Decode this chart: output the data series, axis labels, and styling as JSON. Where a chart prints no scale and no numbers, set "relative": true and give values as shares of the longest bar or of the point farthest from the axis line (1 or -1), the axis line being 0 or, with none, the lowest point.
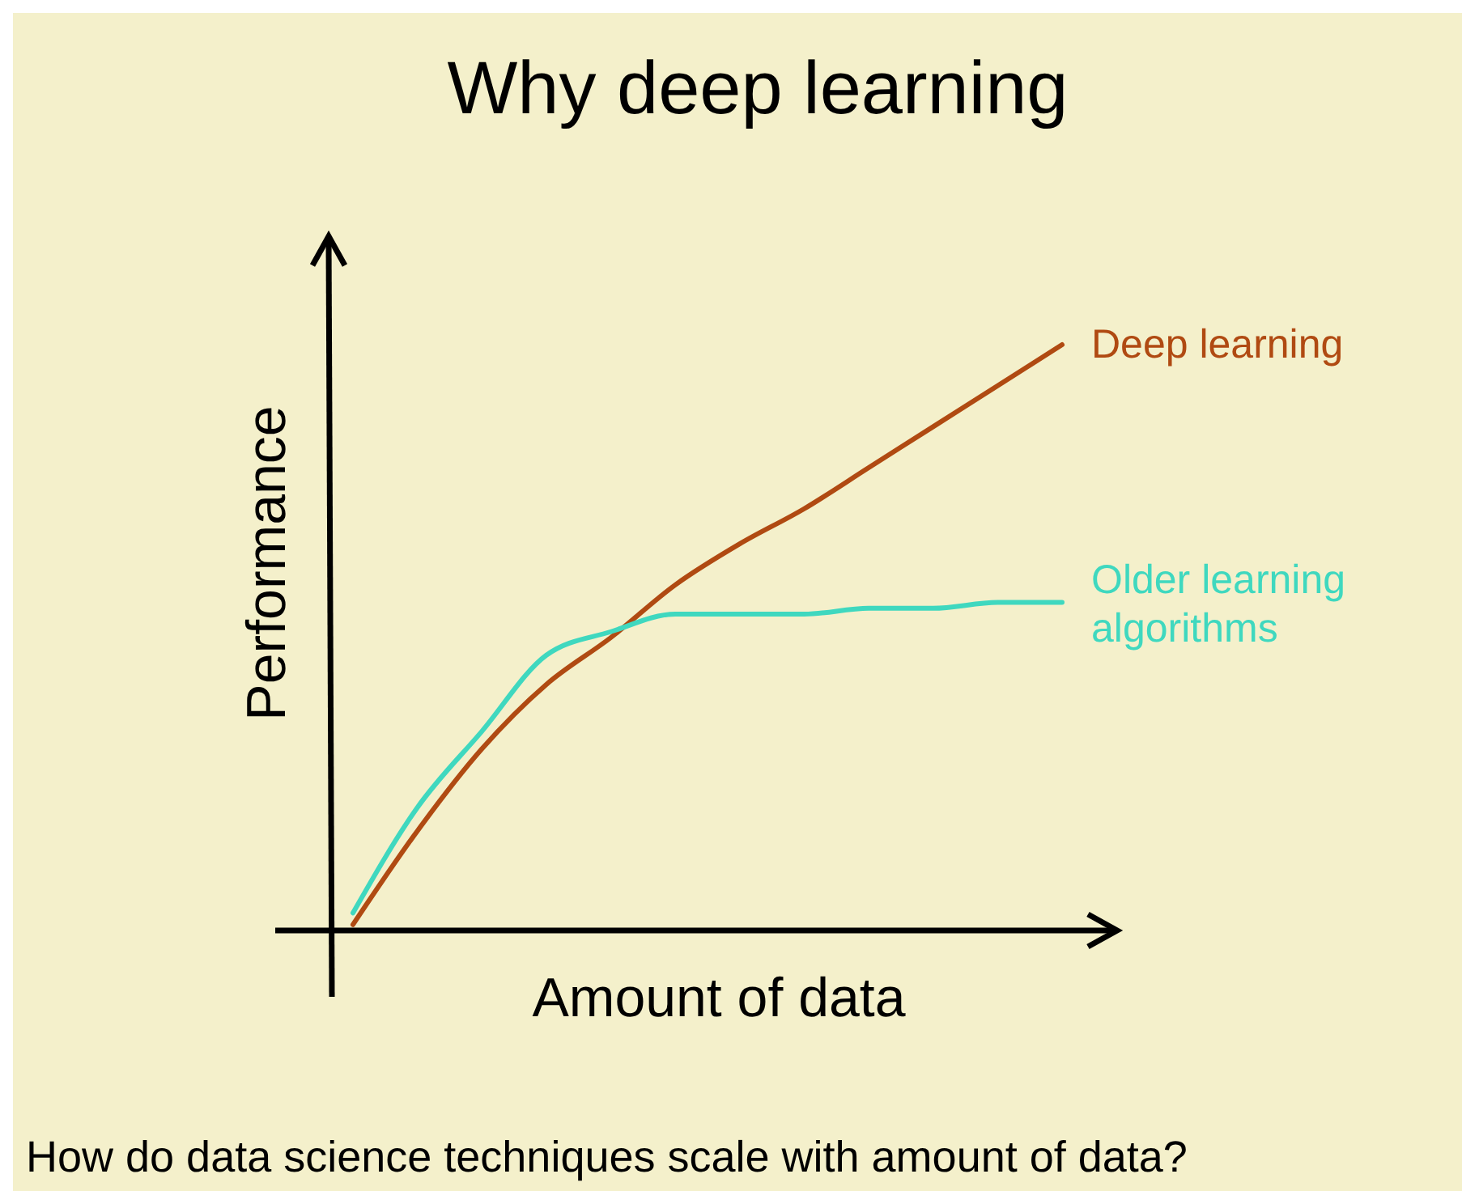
{
  "chart_data": {
    "type": "line",
    "title": "Why deep learning",
    "xlabel": "Amount of data",
    "ylabel": "Performance",
    "relative": true,
    "legend": false,
    "marker": "none",
    "line_style": "solid",
    "grid": false,
    "categories": [
      null,
      null,
      null,
      null,
      null,
      null,
      null,
      null,
      null,
      null,
      null,
      null
    ],
    "series": [
      {
        "name": "Deep learning",
        "color": "#b04a12",
        "values": [
          0.01,
          0.17,
          0.31,
          0.42,
          0.5,
          0.59,
          0.66,
          0.72,
          0.79,
          0.86,
          0.93,
          1
        ]
      },
      {
        "name": "Older learning algorithms",
        "color": "#3fd8bf",
        "values": [
          0.03,
          0.21,
          0.34,
          0.47,
          0.51,
          0.54,
          0.54,
          0.54,
          0.55,
          0.55,
          0.56,
          0.56
        ]
      }
    ],
    "annotations": [
      "How do data science techniques scale with amount of data?"
    ]
  }
}
